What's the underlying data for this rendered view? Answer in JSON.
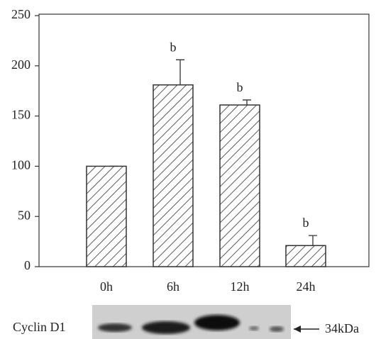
{
  "chart_data": {
    "type": "bar",
    "categories": [
      "0h",
      "6h",
      "12h",
      "24h"
    ],
    "values": [
      100,
      181,
      161,
      21
    ],
    "errors": [
      0,
      25,
      5,
      10
    ],
    "annotations": [
      null,
      "b",
      "b",
      "b"
    ],
    "color": "#333333",
    "ylim": [
      0,
      250
    ],
    "yticks": [
      0,
      50,
      100,
      150,
      200,
      250
    ]
  },
  "blot": {
    "label": "Cyclin D1",
    "marker": "34kDa"
  }
}
